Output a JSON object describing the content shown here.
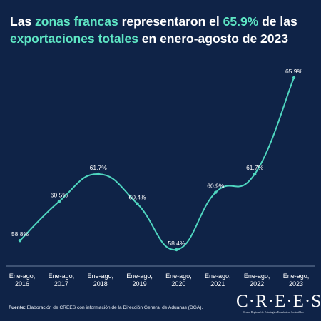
{
  "title": {
    "line1_pre": "Las ",
    "line1_hl1": "zonas francas",
    "line1_mid": " representaron el ",
    "line1_hl2": "65.9%",
    "line1_post": " de las",
    "line2_hl": "exportaciones totales",
    "line2_post": " en enero-agosto de 2023"
  },
  "colors": {
    "background": "#0f2347",
    "accent": "#5ee6c4",
    "line": "#4fd6c0",
    "text": "#ffffff"
  },
  "chart_data": {
    "type": "line",
    "categories": [
      [
        "Ene-ago,",
        "2016"
      ],
      [
        "Ene-ago,",
        "2017"
      ],
      [
        "Ene-ago,",
        "2018"
      ],
      [
        "Ene-ago,",
        "2019"
      ],
      [
        "Ene-ago,",
        "2020"
      ],
      [
        "Ene-ago,",
        "2021"
      ],
      [
        "Ene-ago,",
        "2022"
      ],
      [
        "Ene-ago,",
        "2023"
      ]
    ],
    "values": [
      58.8,
      60.5,
      61.7,
      60.4,
      58.4,
      60.9,
      61.7,
      65.9
    ],
    "labels": [
      "58.8%",
      "60.5%",
      "61.7%",
      "60.4%",
      "58.4%",
      "60.9%",
      "61.7%",
      "65.9%"
    ],
    "title": "",
    "xlabel": "",
    "ylabel": "",
    "ylim": [
      58.4,
      65.9
    ],
    "grid": false,
    "legend": "none",
    "smooth": true
  },
  "footer": {
    "source_label": "Fuente:",
    "source_text": " Elaboración de CREES con información de la Dirección General de Aduanas (DGA)."
  },
  "logo": {
    "wordmark": "CREES",
    "subtitle": "Centro Regional de Estrategias Económicas Sostenibles"
  }
}
